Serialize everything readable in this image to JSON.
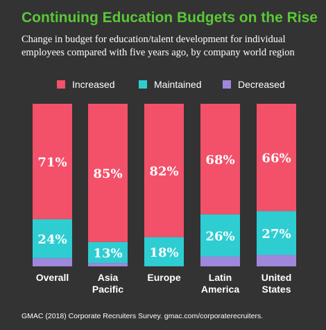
{
  "title": "Continuing Education Budgets on the Rise",
  "subtitle": "Change in budget for education/talent development for individual employees compared with five years ago, by company world region",
  "colors": {
    "background": "#333333",
    "title": "#5ac836",
    "increased": "#f3506a",
    "maintained": "#2ecdd2",
    "decreased": "#9f87dc"
  },
  "legend": [
    {
      "label": "Increased",
      "color": "#f3506a"
    },
    {
      "label": "Maintained",
      "color": "#2ecdd2"
    },
    {
      "label": "Decreased",
      "color": "#9f87dc"
    }
  ],
  "chart_data": {
    "type": "bar",
    "stacked": true,
    "categories": [
      "Overall",
      "Asia Pacific",
      "Europe",
      "Latin America",
      "United States"
    ],
    "category_lines": [
      [
        "Overall"
      ],
      [
        "Asia",
        "Pacific"
      ],
      [
        "Europe"
      ],
      [
        "Latin",
        "America"
      ],
      [
        "United",
        "States"
      ]
    ],
    "series": [
      {
        "name": "Decreased",
        "values": [
          5,
          2,
          0,
          6,
          7
        ]
      },
      {
        "name": "Maintained",
        "values": [
          24,
          13,
          18,
          26,
          27
        ]
      },
      {
        "name": "Increased",
        "values": [
          71,
          85,
          82,
          68,
          66
        ]
      }
    ],
    "data_labels": {
      "Increased": [
        "71%",
        "85%",
        "82%",
        "68%",
        "66%"
      ],
      "Maintained": [
        "24%",
        "13%",
        "18%",
        "26%",
        "27%"
      ]
    },
    "ylim": [
      0,
      100
    ],
    "grid": false,
    "legend_position": "top"
  },
  "footer": "GMAC (2018) Corporate Recruiters Survey. gmac.com/corporaterecruiters."
}
